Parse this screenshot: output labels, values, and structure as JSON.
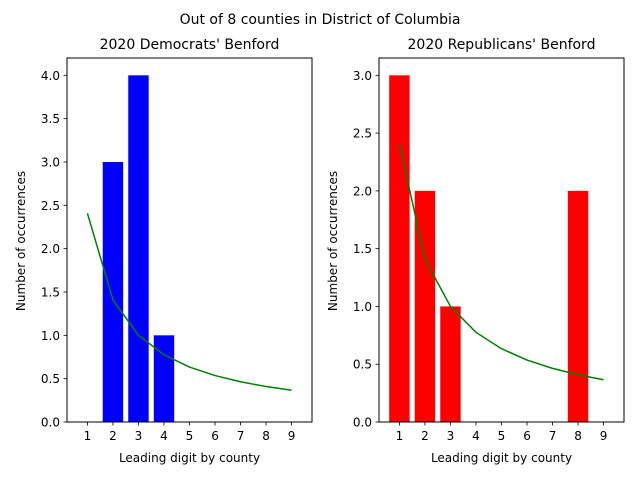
{
  "suptitle": "Out of 8 counties in District of Columbia",
  "chart_data": [
    {
      "type": "bar",
      "title": "2020 Democrats' Benford",
      "xlabel": "Leading digit by county",
      "ylabel": "Number of occurrences",
      "categories": [
        1,
        2,
        3,
        4,
        5,
        6,
        7,
        8,
        9
      ],
      "values": [
        0,
        3,
        4,
        1,
        0,
        0,
        0,
        0,
        0
      ],
      "bar_color": "#0000ff",
      "expected": [
        2.408,
        1.409,
        1.0,
        0.776,
        0.634,
        0.536,
        0.464,
        0.409,
        0.366
      ],
      "expected_color": "#008000",
      "ylim": [
        0,
        4.2
      ],
      "yticks": [
        0.0,
        0.5,
        1.0,
        1.5,
        2.0,
        2.5,
        3.0,
        3.5,
        4.0
      ],
      "ytick_labels": [
        "0.0",
        "0.5",
        "1.0",
        "1.5",
        "2.0",
        "2.5",
        "3.0",
        "3.5",
        "4.0"
      ],
      "xlim": [
        0.2,
        9.8
      ],
      "grid": false
    },
    {
      "type": "bar",
      "title": "2020 Republicans' Benford",
      "xlabel": "Leading digit by county",
      "ylabel": "Number of occurrences",
      "categories": [
        1,
        2,
        3,
        4,
        5,
        6,
        7,
        8,
        9
      ],
      "values": [
        3,
        2,
        1,
        0,
        0,
        0,
        0,
        2,
        0
      ],
      "bar_color": "#ff0000",
      "expected": [
        2.408,
        1.409,
        1.0,
        0.776,
        0.634,
        0.536,
        0.464,
        0.409,
        0.366
      ],
      "expected_color": "#008000",
      "ylim": [
        0,
        3.15
      ],
      "yticks": [
        0.0,
        0.5,
        1.0,
        1.5,
        2.0,
        2.5,
        3.0
      ],
      "ytick_labels": [
        "0.0",
        "0.5",
        "1.0",
        "1.5",
        "2.0",
        "2.5",
        "3.0"
      ],
      "xlim": [
        0.2,
        9.8
      ],
      "grid": false
    }
  ]
}
